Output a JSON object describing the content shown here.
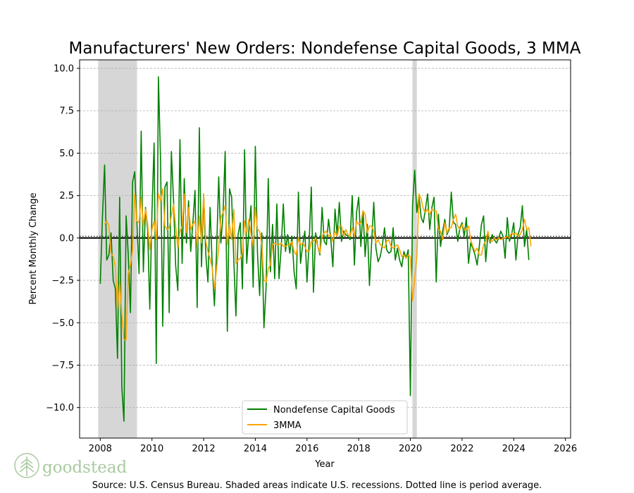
{
  "chart_data": {
    "type": "line",
    "title": "Manufacturers' New Orders: Nondefense Capital Goods, 3 MMA",
    "xlabel": "Year",
    "ylabel": "Percent Monthly Change",
    "xlim": [
      2007.2,
      2026.2
    ],
    "ylim": [
      -11.8,
      10.5
    ],
    "x_ticks": [
      2008,
      2010,
      2012,
      2014,
      2016,
      2018,
      2020,
      2022,
      2024,
      2026
    ],
    "x_tick_labels": [
      "2008",
      "2010",
      "2012",
      "2014",
      "2016",
      "2018",
      "2020",
      "2022",
      "2024",
      "2026"
    ],
    "y_ticks": [
      -10.0,
      -7.5,
      -5.0,
      -2.5,
      0.0,
      2.5,
      5.0,
      7.5,
      10.0
    ],
    "y_tick_labels": [
      "−10.0",
      "−7.5",
      "−5.0",
      "−2.5",
      "0.0",
      "2.5",
      "5.0",
      "7.5",
      "10.0"
    ],
    "grid": "horizontal-dashed",
    "zero_line": 0.0,
    "average_line": 0.1,
    "recessions": [
      [
        2007.92,
        2009.42
      ],
      [
        2020.08,
        2020.25
      ]
    ],
    "series_start": 2008.0,
    "series_step": 0.0833333,
    "series": [
      {
        "name": "Nondefense Capital Goods",
        "color": "#008000",
        "values": [
          -2.7,
          1.2,
          4.3,
          -1.3,
          -1.0,
          0.3,
          -2.5,
          -3.0,
          -7.1,
          2.4,
          -8.8,
          -10.8,
          1.3,
          -1.0,
          -4.4,
          3.3,
          3.9,
          1.0,
          -2.1,
          6.3,
          -2.0,
          1.8,
          0.5,
          -4.2,
          1.5,
          5.6,
          -7.4,
          9.5,
          4.5,
          -5.2,
          3.0,
          3.3,
          -4.4,
          5.1,
          2.3,
          -1.6,
          -3.1,
          5.8,
          -1.5,
          3.5,
          -0.3,
          2.2,
          -0.8,
          0.9,
          2.8,
          -4.1,
          6.5,
          -1.7,
          2.6,
          -1.0,
          -2.6,
          1.8,
          -1.7,
          -4.0,
          -0.8,
          3.6,
          -0.3,
          1.4,
          5.1,
          -5.5,
          2.9,
          2.4,
          -1.3,
          -4.6,
          0.2,
          0.9,
          -3.0,
          5.2,
          -1.5,
          0.4,
          1.9,
          -2.9,
          5.4,
          -0.9,
          -3.4,
          0.3,
          -5.3,
          -2.9,
          3.5,
          -2.0,
          0.8,
          -2.4,
          2.0,
          -2.4,
          -0.6,
          2.0,
          -0.8,
          0.2,
          -0.9,
          0.1,
          -2.0,
          -3.0,
          2.7,
          -1.5,
          -0.4,
          0.4,
          -2.6,
          -0.2,
          3.0,
          -3.2,
          0.3,
          -0.5,
          -1.0,
          1.8,
          -0.2,
          -0.4,
          1.1,
          0.0,
          -1.7,
          1.7,
          0.2,
          2.1,
          -0.2,
          0.4,
          0.2,
          0.1,
          -0.1,
          2.5,
          -1.6,
          1.5,
          2.4,
          -0.5,
          1.6,
          -1.1,
          0.8,
          -2.8,
          -0.3,
          2.1,
          -0.6,
          -1.4,
          -1.1,
          -0.4,
          0.6,
          -0.7,
          -0.9,
          -0.8,
          0.6,
          -1.3,
          -0.6,
          -1.3,
          -1.7,
          -0.8,
          -1.2,
          -0.7,
          -9.3,
          1.9,
          4.0,
          1.5,
          2.5,
          1.2,
          0.9,
          1.7,
          2.6,
          0.5,
          1.8,
          2.4,
          -2.6,
          1.4,
          -0.5,
          0.4,
          1.1,
          0.2,
          0.5,
          2.7,
          0.9,
          0.8,
          -0.2,
          0.6,
          0.9,
          0.1,
          1.2,
          -1.5,
          -0.3,
          -0.6,
          -1.0,
          -1.6,
          -0.5,
          0.8,
          1.3,
          -1.4,
          0.2,
          -0.3,
          0.2,
          -0.1,
          -0.3,
          0.0,
          0.4,
          0.1,
          -1.2,
          1.2,
          -0.2,
          0.2,
          0.9,
          -1.3,
          0.2,
          0.6,
          1.9,
          -0.5,
          0.5,
          -1.3
        ]
      },
      {
        "name": "3MMA",
        "color": "#FFA500",
        "values": [
          null,
          null,
          0.8,
          1.0,
          0.7,
          -0.9,
          -1.1,
          -1.7,
          -4.2,
          -2.6,
          -4.5,
          -6.0,
          -6.0,
          -2.1,
          -1.6,
          -0.7,
          2.6,
          1.0,
          0.9,
          2.4,
          0.7,
          1.7,
          0.8,
          -0.7,
          0.5,
          1.0,
          -0.1,
          2.6,
          2.2,
          2.9,
          0.7,
          0.5,
          0.6,
          1.3,
          2.0,
          0.7,
          -0.6,
          0.4,
          0.7,
          2.6,
          0.3,
          1.8,
          0.5,
          0.8,
          1.0,
          -0.5,
          1.3,
          -0.3,
          2.6,
          -0.2,
          -0.8,
          -1.2,
          -1.8,
          -3.0,
          -1.8,
          -0.6,
          1.2,
          1.5,
          1.9,
          -0.4,
          0.8,
          -0.1,
          1.7,
          -1.5,
          -1.3,
          -1.2,
          -0.9,
          1.0,
          0.3,
          1.1,
          0.2,
          -0.5,
          1.8,
          0.5,
          0.4,
          -0.4,
          -2.5,
          -2.6,
          -1.8,
          -1.6,
          -0.4,
          -0.3,
          -0.4,
          -0.4,
          -0.3,
          -0.5,
          -0.5,
          -0.4,
          -0.4,
          -0.2,
          -0.8,
          -1.0,
          0.0,
          -0.4,
          -0.3,
          -0.5,
          -0.8,
          -0.8,
          -0.2,
          -0.2,
          0.0,
          -0.5,
          -0.9,
          0.1,
          0.3,
          0.4,
          0.1,
          0.2,
          -0.2,
          0.4,
          0.1,
          0.7,
          0.7,
          0.1,
          0.5,
          0.2,
          0.1,
          0.6,
          0.1,
          1.0,
          0.8,
          0.9,
          1.6,
          1.4,
          0.3,
          0.7,
          0.7,
          0.4,
          -0.3,
          -0.1,
          -0.4,
          -0.5,
          -0.6,
          -0.2,
          -0.1,
          -0.5,
          -0.6,
          -0.5,
          -0.4,
          -0.7,
          -1.1,
          -1.0,
          -1.2,
          -1.0,
          -1.1,
          -3.7,
          -2.4,
          -1.1,
          2.6,
          2.3,
          1.7,
          1.5,
          1.7,
          1.4,
          1.7,
          1.6,
          1.6,
          0.5,
          0.4,
          -0.1,
          0.9,
          0.3,
          0.6,
          0.6,
          1.1,
          1.4,
          0.7,
          0.5,
          0.8,
          0.5,
          0.5,
          0.7,
          -0.1,
          -0.5,
          -0.8,
          -0.6,
          -1.0,
          -1.0,
          -0.4,
          -0.2,
          0.4,
          -0.2,
          -0.2,
          0.0,
          -0.1,
          0.0,
          -0.1,
          0.0,
          0.0,
          0.1,
          0.0,
          0.3,
          0.2,
          0.3,
          0.1,
          0.2,
          0.5,
          1.1,
          0.5,
          0.6,
          -0.5
        ]
      }
    ],
    "legend_position": "lower-center"
  },
  "footer": {
    "source": "Source: U.S. Census Bureau. Shaded areas indicate U.S. recessions. Dotted line is period average.",
    "logo": "goodstead"
  }
}
